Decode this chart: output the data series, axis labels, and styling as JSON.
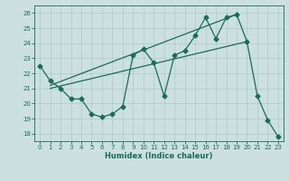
{
  "background_color": "#cde0e0",
  "grid_color": "#adc8c8",
  "line_color": "#1a6b5a",
  "xlim": [
    -0.5,
    23.5
  ],
  "ylim": [
    17.5,
    26.5
  ],
  "yticks": [
    18,
    19,
    20,
    21,
    22,
    23,
    24,
    25,
    26
  ],
  "xticks": [
    0,
    1,
    2,
    3,
    4,
    5,
    6,
    7,
    8,
    9,
    10,
    11,
    12,
    13,
    14,
    15,
    16,
    17,
    18,
    19,
    20,
    21,
    22,
    23
  ],
  "xlabel": "Humidex (Indice chaleur)",
  "line_main_x": [
    0,
    1,
    2,
    3,
    4,
    5,
    6,
    7,
    8,
    9,
    10,
    11,
    12,
    13,
    14,
    15,
    16,
    17,
    18,
    19,
    20,
    21,
    22,
    23
  ],
  "line_main_y": [
    22.5,
    21.5,
    21.0,
    20.3,
    20.3,
    19.3,
    19.1,
    19.3,
    19.8,
    23.2,
    23.6,
    22.7,
    20.5,
    23.2,
    23.5,
    24.5,
    25.7,
    24.3,
    25.7,
    25.9,
    24.1,
    20.5,
    18.9,
    17.8
  ],
  "line_trend1_x": [
    1,
    19
  ],
  "line_trend1_y": [
    21.2,
    25.9
  ],
  "line_trend2_x": [
    1,
    20
  ],
  "line_trend2_y": [
    21.0,
    24.1
  ]
}
